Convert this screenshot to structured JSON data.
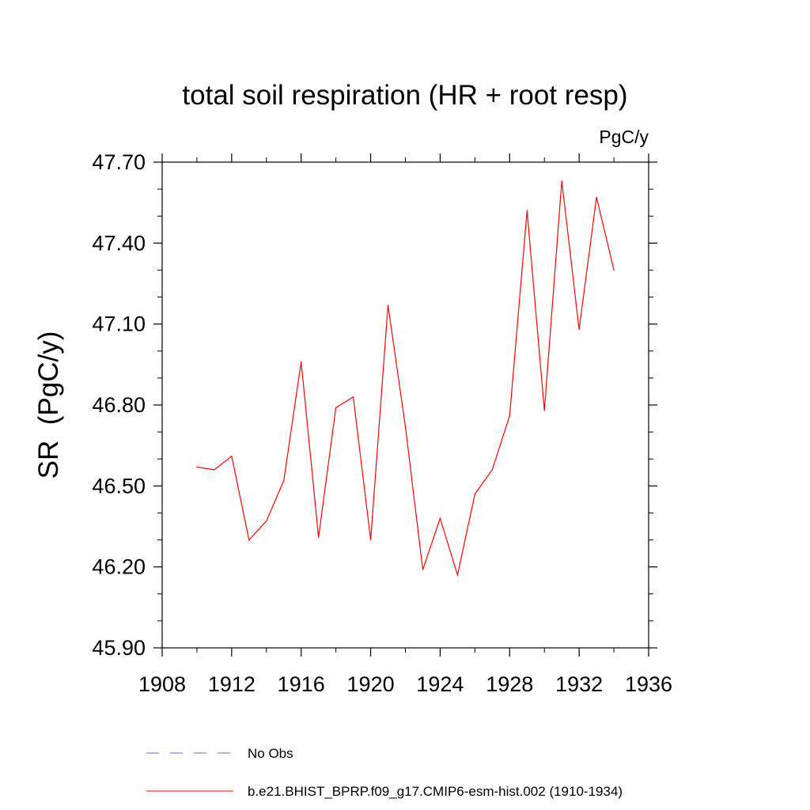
{
  "chart_data": {
    "type": "line",
    "title": "total soil respiration (HR + root resp)",
    "units_label": "PgC/y",
    "ylabel": "SR  (PgC/y)",
    "xlabel": "",
    "xlim": [
      1908,
      1936
    ],
    "ylim": [
      45.9,
      47.7
    ],
    "x_ticks": [
      1908,
      1912,
      1916,
      1920,
      1924,
      1928,
      1932,
      1936
    ],
    "x_tick_labels": [
      "1908",
      "1912",
      "1916",
      "1920",
      "1924",
      "1928",
      "1932",
      "1936"
    ],
    "y_ticks": [
      45.9,
      46.2,
      46.5,
      46.8,
      47.1,
      47.4,
      47.7
    ],
    "y_tick_labels": [
      "45.90",
      "46.20",
      "46.50",
      "46.80",
      "47.10",
      "47.40",
      "47.70"
    ],
    "x_minor_step": 2,
    "y_minor_step": 0.1,
    "grid": false,
    "legend_position": "bottom-left",
    "series": [
      {
        "name": "b.e21.BHIST_BPRP.f09_g17.CMIP6-esm-hist.002 (1910-1934)",
        "color": "#ff0000",
        "dash": "solid",
        "x": [
          1910,
          1911,
          1912,
          1913,
          1914,
          1915,
          1916,
          1917,
          1918,
          1919,
          1920,
          1921,
          1922,
          1923,
          1924,
          1925,
          1926,
          1927,
          1928,
          1929,
          1930,
          1931,
          1932,
          1933,
          1934
        ],
        "values": [
          46.57,
          46.56,
          46.61,
          46.3,
          46.37,
          46.52,
          46.96,
          46.31,
          46.79,
          46.83,
          46.3,
          47.17,
          46.72,
          46.19,
          46.38,
          46.17,
          46.47,
          46.56,
          46.76,
          47.52,
          46.78,
          47.63,
          47.08,
          47.57,
          47.3
        ]
      }
    ],
    "legend": [
      {
        "label": "No Obs",
        "color": "#6a6ac8",
        "dash": "dashed"
      },
      {
        "label": "b.e21.BHIST_BPRP.f09_g17.CMIP6-esm-hist.002 (1910-1934)",
        "color": "#ff0000",
        "dash": "solid"
      }
    ]
  }
}
